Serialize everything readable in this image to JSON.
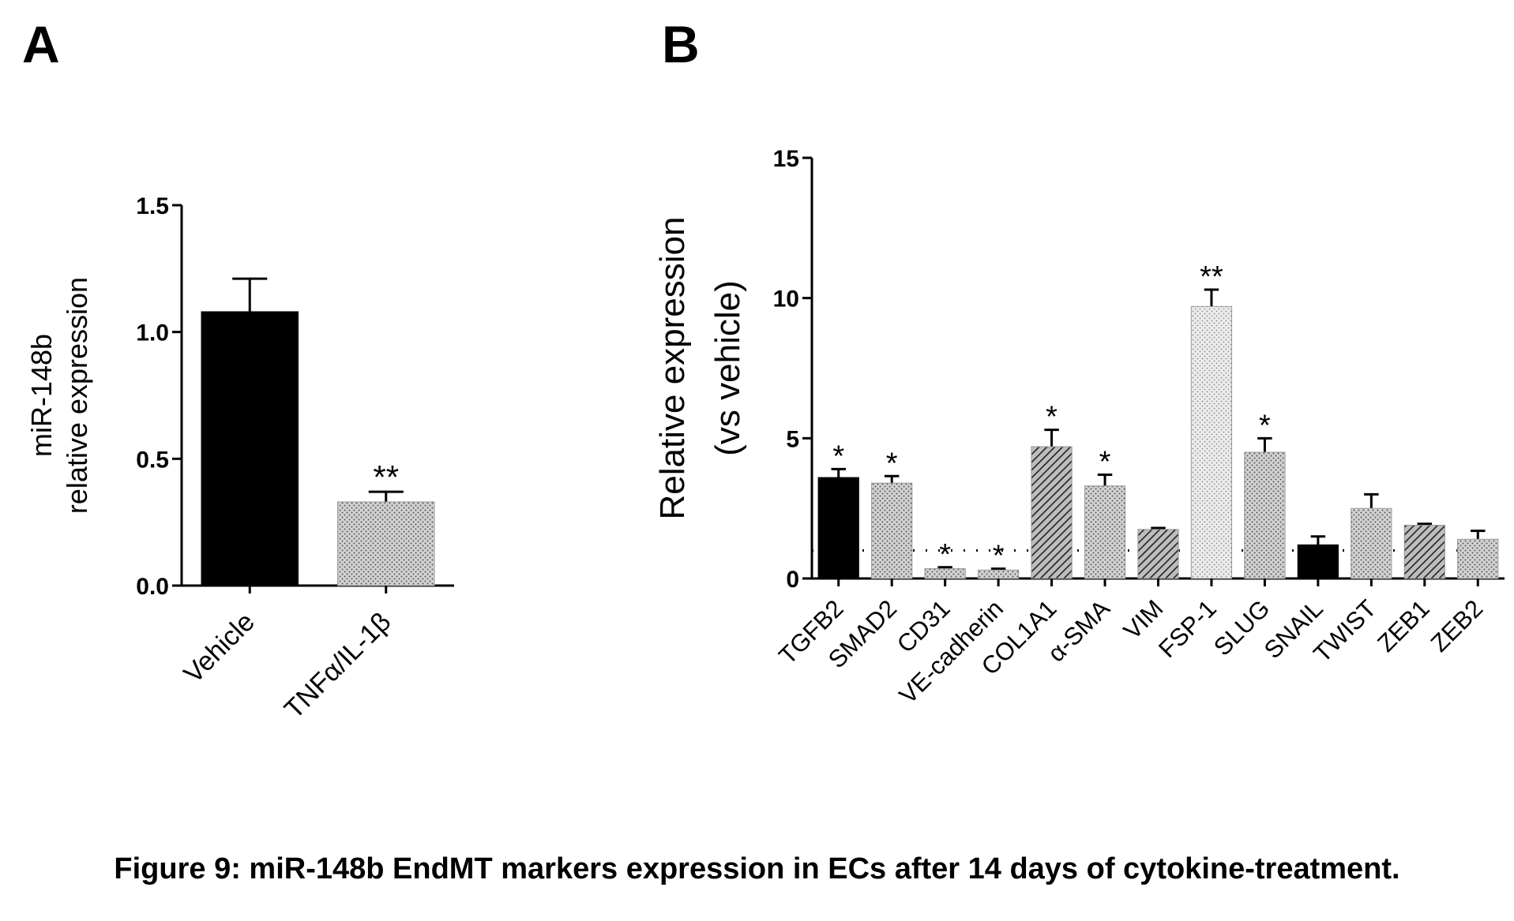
{
  "panels": {
    "a_label": "A",
    "b_label": "B"
  },
  "caption": "Figure 9: miR-148b EndMT markers expression in ECs after 14 days of cytokine-treatment.",
  "chart_data": [
    {
      "panel": "A",
      "type": "bar",
      "ylabel_lines": [
        "miR-148b",
        "relative expression"
      ],
      "ylim": [
        0,
        1.5
      ],
      "yticks": [
        "0.0",
        "0.5",
        "1.0",
        "1.5"
      ],
      "yticks_values": [
        0,
        0.5,
        1.0,
        1.5
      ],
      "categories": [
        "Vehicle",
        "TNFα/IL-1β"
      ],
      "values": [
        1.08,
        0.33
      ],
      "errors": [
        0.13,
        0.04
      ],
      "fills": [
        "solid",
        "dots"
      ],
      "significance": [
        "",
        "**"
      ]
    },
    {
      "panel": "B",
      "type": "bar",
      "ylabel_lines": [
        "Relative expression",
        "(vs vehicle)"
      ],
      "ylim": [
        0,
        15
      ],
      "yticks": [
        "0",
        "5",
        "10",
        "15"
      ],
      "yticks_values": [
        0,
        5,
        10,
        15
      ],
      "reference_line": 1,
      "categories": [
        "TGFB2",
        "SMAD2",
        "CD31",
        "VE-cadherin",
        "COL1A1",
        "α-SMA",
        "VIM",
        "FSP-1",
        "SLUG",
        "SNAIL",
        "TWIST",
        "ZEB1",
        "ZEB2"
      ],
      "values": [
        3.6,
        3.4,
        0.35,
        0.3,
        4.7,
        3.3,
        1.75,
        9.7,
        4.5,
        1.2,
        2.5,
        1.9,
        1.4
      ],
      "errors": [
        0.3,
        0.25,
        0.05,
        0.05,
        0.6,
        0.4,
        0.05,
        0.6,
        0.5,
        0.3,
        0.5,
        0.05,
        0.3
      ],
      "fills": [
        "solid",
        "dots",
        "dots",
        "dots",
        "hatch",
        "dots",
        "hatch",
        "light",
        "dots",
        "solid",
        "dots",
        "hatch",
        "dots"
      ],
      "significance": [
        "*",
        "*",
        "*",
        "*",
        "*",
        "*",
        "",
        "**",
        "*",
        "",
        "",
        "",
        ""
      ]
    }
  ]
}
